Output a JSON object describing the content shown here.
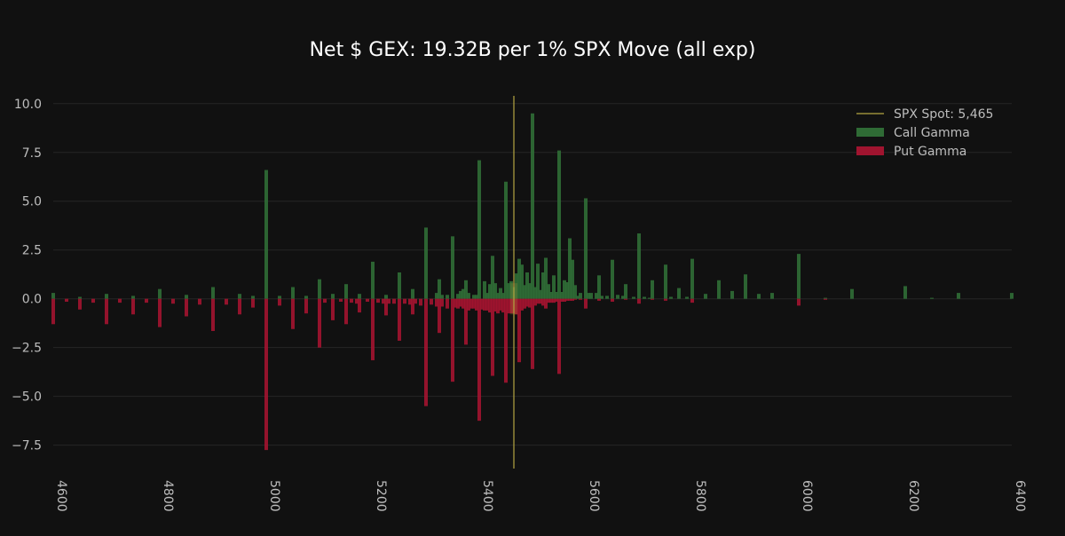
{
  "chart_data": {
    "type": "bar",
    "title": "Net $ GEX: 19.32B per 1% SPX Move (all exp)",
    "xlabel": "",
    "ylabel": "",
    "xlim": [
      4600,
      6400
    ],
    "ylim": [
      -8.7,
      10.4
    ],
    "x_ticks": [
      4600,
      4800,
      5000,
      5200,
      5400,
      5600,
      5800,
      6000,
      6200,
      6400
    ],
    "x_tick_labels": [
      "4600",
      "4800",
      "5000",
      "5200",
      "5400",
      "5600",
      "5800",
      "6000",
      "6200",
      "6400"
    ],
    "y_ticks": [
      -7.5,
      -5.0,
      -2.5,
      0.0,
      2.5,
      5.0,
      7.5,
      10.0
    ],
    "y_tick_labels": [
      "−7.5",
      "−5.0",
      "−2.5",
      "0.0",
      "2.5",
      "5.0",
      "7.5",
      "10.0"
    ],
    "grid": "horizontal",
    "legend_position": "top-right",
    "bar_width": 4,
    "spot": {
      "label": "SPX Spot: 5,465",
      "value": 5465,
      "color": "#b5a642"
    },
    "legend": [
      {
        "label": "SPX Spot: 5,465",
        "kind": "line",
        "color": "#b5a642"
      },
      {
        "label": "Call Gamma",
        "kind": "patch",
        "color": "#2f6b35"
      },
      {
        "label": "Put Gamma",
        "kind": "patch",
        "color": "#a0142f"
      }
    ],
    "series": [
      {
        "name": "Call Gamma",
        "color": "#2f6b35",
        "points": [
          [
            4600,
            0.3
          ],
          [
            4650,
            0.1
          ],
          [
            4700,
            0.25
          ],
          [
            4750,
            0.15
          ],
          [
            4800,
            0.5
          ],
          [
            4850,
            0.2
          ],
          [
            4900,
            0.6
          ],
          [
            4950,
            0.25
          ],
          [
            4975,
            0.15
          ],
          [
            5000,
            6.6
          ],
          [
            5025,
            0.15
          ],
          [
            5050,
            0.6
          ],
          [
            5075,
            0.15
          ],
          [
            5100,
            1.0
          ],
          [
            5125,
            0.25
          ],
          [
            5150,
            0.75
          ],
          [
            5175,
            0.25
          ],
          [
            5200,
            1.9
          ],
          [
            5225,
            0.2
          ],
          [
            5250,
            1.35
          ],
          [
            5275,
            0.5
          ],
          [
            5300,
            3.65
          ],
          [
            5320,
            0.3
          ],
          [
            5325,
            1.0
          ],
          [
            5330,
            0.2
          ],
          [
            5340,
            0.2
          ],
          [
            5350,
            3.2
          ],
          [
            5360,
            0.25
          ],
          [
            5365,
            0.4
          ],
          [
            5370,
            0.5
          ],
          [
            5375,
            0.95
          ],
          [
            5380,
            0.3
          ],
          [
            5390,
            0.2
          ],
          [
            5395,
            0.2
          ],
          [
            5400,
            7.1
          ],
          [
            5410,
            0.9
          ],
          [
            5415,
            0.3
          ],
          [
            5420,
            0.75
          ],
          [
            5425,
            2.2
          ],
          [
            5430,
            0.8
          ],
          [
            5435,
            0.3
          ],
          [
            5440,
            0.55
          ],
          [
            5445,
            0.3
          ],
          [
            5450,
            6.0
          ],
          [
            5455,
            0.8
          ],
          [
            5460,
            0.9
          ],
          [
            5465,
            0.6
          ],
          [
            5470,
            1.3
          ],
          [
            5475,
            2.05
          ],
          [
            5480,
            1.75
          ],
          [
            5485,
            0.7
          ],
          [
            5490,
            1.35
          ],
          [
            5495,
            0.8
          ],
          [
            5500,
            9.5
          ],
          [
            5505,
            0.6
          ],
          [
            5510,
            1.8
          ],
          [
            5515,
            0.45
          ],
          [
            5520,
            1.35
          ],
          [
            5525,
            2.1
          ],
          [
            5530,
            0.75
          ],
          [
            5535,
            0.35
          ],
          [
            5540,
            1.2
          ],
          [
            5545,
            0.35
          ],
          [
            5550,
            7.6
          ],
          [
            5555,
            0.35
          ],
          [
            5560,
            0.95
          ],
          [
            5565,
            0.85
          ],
          [
            5570,
            3.1
          ],
          [
            5575,
            2.0
          ],
          [
            5580,
            0.7
          ],
          [
            5585,
            0.15
          ],
          [
            5590,
            0.3
          ],
          [
            5600,
            5.15
          ],
          [
            5605,
            0.3
          ],
          [
            5610,
            0.3
          ],
          [
            5620,
            0.3
          ],
          [
            5625,
            1.2
          ],
          [
            5630,
            0.15
          ],
          [
            5640,
            0.15
          ],
          [
            5650,
            2.0
          ],
          [
            5660,
            0.2
          ],
          [
            5670,
            0.15
          ],
          [
            5675,
            0.75
          ],
          [
            5690,
            0.1
          ],
          [
            5700,
            3.35
          ],
          [
            5710,
            0.1
          ],
          [
            5720,
            0.05
          ],
          [
            5725,
            0.95
          ],
          [
            5750,
            1.75
          ],
          [
            5760,
            0.1
          ],
          [
            5775,
            0.55
          ],
          [
            5790,
            0.1
          ],
          [
            5800,
            2.05
          ],
          [
            5825,
            0.25
          ],
          [
            5850,
            0.95
          ],
          [
            5875,
            0.4
          ],
          [
            5900,
            1.25
          ],
          [
            5925,
            0.25
          ],
          [
            5950,
            0.3
          ],
          [
            6000,
            2.3
          ],
          [
            6050,
            0.05
          ],
          [
            6100,
            0.5
          ],
          [
            6200,
            0.65
          ],
          [
            6250,
            0.05
          ],
          [
            6300,
            0.3
          ],
          [
            6400,
            0.3
          ]
        ]
      },
      {
        "name": "Put Gamma",
        "color": "#a0142f",
        "points": [
          [
            4600,
            -1.3
          ],
          [
            4625,
            -0.15
          ],
          [
            4650,
            -0.55
          ],
          [
            4675,
            -0.2
          ],
          [
            4700,
            -1.3
          ],
          [
            4725,
            -0.2
          ],
          [
            4750,
            -0.8
          ],
          [
            4775,
            -0.2
          ],
          [
            4800,
            -1.45
          ],
          [
            4825,
            -0.25
          ],
          [
            4850,
            -0.9
          ],
          [
            4875,
            -0.3
          ],
          [
            4900,
            -1.65
          ],
          [
            4925,
            -0.3
          ],
          [
            4950,
            -0.8
          ],
          [
            4975,
            -0.45
          ],
          [
            5000,
            -7.75
          ],
          [
            5025,
            -0.35
          ],
          [
            5050,
            -1.55
          ],
          [
            5075,
            -0.75
          ],
          [
            5100,
            -2.5
          ],
          [
            5110,
            -0.2
          ],
          [
            5125,
            -1.1
          ],
          [
            5140,
            -0.15
          ],
          [
            5150,
            -1.3
          ],
          [
            5160,
            -0.2
          ],
          [
            5170,
            -0.25
          ],
          [
            5175,
            -0.7
          ],
          [
            5190,
            -0.15
          ],
          [
            5200,
            -3.15
          ],
          [
            5210,
            -0.2
          ],
          [
            5220,
            -0.25
          ],
          [
            5225,
            -0.85
          ],
          [
            5230,
            -0.25
          ],
          [
            5240,
            -0.25
          ],
          [
            5250,
            -2.15
          ],
          [
            5260,
            -0.25
          ],
          [
            5270,
            -0.3
          ],
          [
            5275,
            -0.8
          ],
          [
            5280,
            -0.25
          ],
          [
            5290,
            -0.35
          ],
          [
            5300,
            -5.5
          ],
          [
            5310,
            -0.3
          ],
          [
            5320,
            -0.4
          ],
          [
            5325,
            -1.75
          ],
          [
            5330,
            -0.4
          ],
          [
            5340,
            -0.5
          ],
          [
            5350,
            -4.25
          ],
          [
            5355,
            -0.45
          ],
          [
            5360,
            -0.5
          ],
          [
            5365,
            -0.4
          ],
          [
            5370,
            -0.5
          ],
          [
            5375,
            -2.35
          ],
          [
            5380,
            -0.6
          ],
          [
            5385,
            -0.5
          ],
          [
            5390,
            -0.5
          ],
          [
            5395,
            -0.6
          ],
          [
            5400,
            -6.25
          ],
          [
            5405,
            -0.55
          ],
          [
            5410,
            -0.6
          ],
          [
            5415,
            -0.6
          ],
          [
            5420,
            -0.7
          ],
          [
            5425,
            -3.95
          ],
          [
            5430,
            -0.65
          ],
          [
            5435,
            -0.75
          ],
          [
            5440,
            -0.6
          ],
          [
            5445,
            -0.7
          ],
          [
            5450,
            -4.3
          ],
          [
            5455,
            -0.75
          ],
          [
            5460,
            -0.75
          ],
          [
            5465,
            -0.75
          ],
          [
            5470,
            -0.8
          ],
          [
            5475,
            -3.25
          ],
          [
            5480,
            -0.6
          ],
          [
            5485,
            -0.5
          ],
          [
            5490,
            -0.4
          ],
          [
            5495,
            -0.45
          ],
          [
            5500,
            -3.6
          ],
          [
            5505,
            -0.35
          ],
          [
            5510,
            -0.25
          ],
          [
            5515,
            -0.25
          ],
          [
            5520,
            -0.35
          ],
          [
            5525,
            -0.5
          ],
          [
            5530,
            -0.2
          ],
          [
            5535,
            -0.2
          ],
          [
            5540,
            -0.2
          ],
          [
            5545,
            -0.15
          ],
          [
            5550,
            -3.85
          ],
          [
            5555,
            -0.15
          ],
          [
            5560,
            -0.15
          ],
          [
            5565,
            -0.1
          ],
          [
            5570,
            -0.1
          ],
          [
            5575,
            -0.1
          ],
          [
            5580,
            -0.05
          ],
          [
            5590,
            -0.05
          ],
          [
            5600,
            -0.5
          ],
          [
            5625,
            -0.1
          ],
          [
            5650,
            -0.15
          ],
          [
            5675,
            -0.05
          ],
          [
            5700,
            -0.25
          ],
          [
            5725,
            -0.05
          ],
          [
            5750,
            -0.1
          ],
          [
            5800,
            -0.2
          ],
          [
            6000,
            -0.35
          ],
          [
            6050,
            -0.05
          ]
        ]
      }
    ]
  }
}
